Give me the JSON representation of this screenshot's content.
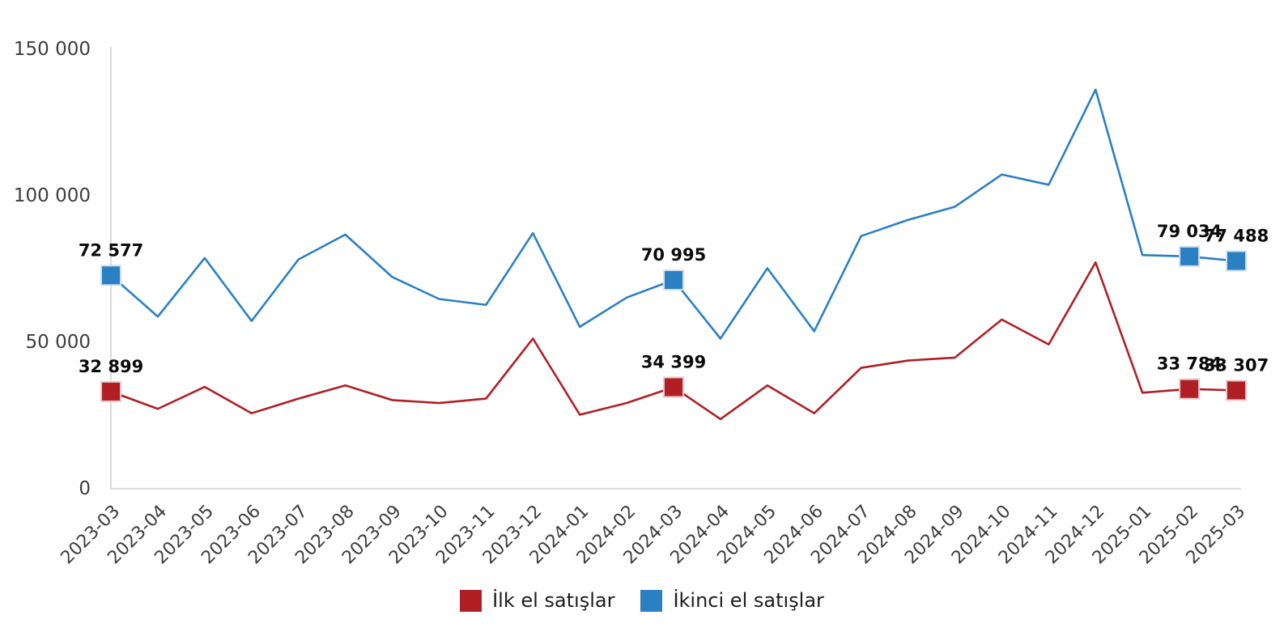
{
  "chart_data": {
    "type": "line",
    "title": "",
    "xlabel": "",
    "ylabel": "",
    "ylim": [
      0,
      150000
    ],
    "grid": false,
    "legend_position": "bottom",
    "categories": [
      "2023-03",
      "2023-04",
      "2023-05",
      "2023-06",
      "2023-07",
      "2023-08",
      "2023-09",
      "2023-10",
      "2023-11",
      "2023-12",
      "2024-01",
      "2024-02",
      "2024-03",
      "2024-04",
      "2024-05",
      "2024-06",
      "2024-07",
      "2024-08",
      "2024-09",
      "2024-10",
      "2024-11",
      "2024-12",
      "2025-01",
      "2025-02",
      "2025-03"
    ],
    "yticks": [
      {
        "value": 150000,
        "label": "150 000"
      },
      {
        "value": 100000,
        "label": "100 000"
      },
      {
        "value": 50000,
        "label": "50 000"
      },
      {
        "value": 0,
        "label": "0"
      }
    ],
    "series": [
      {
        "name": "İlk el satışlar",
        "slug": "ilk-el",
        "color": "#b01f24",
        "marker_stroke": "#e8c9ca",
        "values": [
          32899,
          27000,
          34500,
          25500,
          30500,
          35000,
          30000,
          29000,
          30500,
          51000,
          25000,
          29000,
          34399,
          23500,
          35000,
          25500,
          41000,
          43500,
          44500,
          57500,
          49000,
          77000,
          32500,
          33784,
          33307
        ],
        "labeled_points": [
          {
            "category": "2023-03",
            "label": "32 899"
          },
          {
            "category": "2024-03",
            "label": "34 399"
          },
          {
            "category": "2025-02",
            "label": "33 784"
          },
          {
            "category": "2025-03",
            "label": "33 307"
          }
        ]
      },
      {
        "name": "İkinci el satışlar",
        "slug": "ikinci-el",
        "color": "#2b80c4",
        "marker_stroke": "#cfdeed",
        "values": [
          72577,
          58500,
          78500,
          57000,
          78000,
          86500,
          72000,
          64500,
          62500,
          87000,
          55000,
          65000,
          70995,
          51000,
          75000,
          53500,
          86000,
          91500,
          96000,
          107000,
          103500,
          136000,
          79500,
          79034,
          77488
        ],
        "labeled_points": [
          {
            "category": "2023-03",
            "label": "72 577"
          },
          {
            "category": "2024-03",
            "label": "70 995"
          },
          {
            "category": "2025-02",
            "label": "79 034"
          },
          {
            "category": "2025-03",
            "label": "77 488"
          }
        ]
      }
    ]
  }
}
